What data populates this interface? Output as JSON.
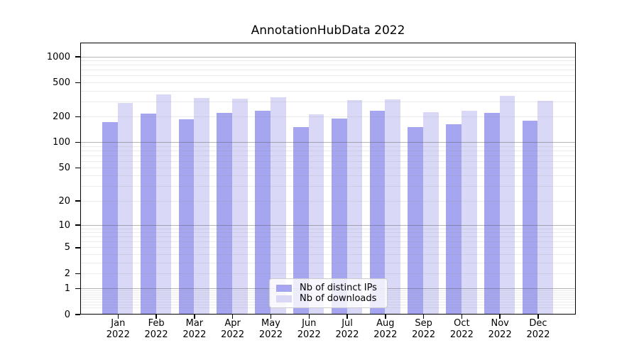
{
  "chart_data": {
    "type": "bar",
    "title": "AnnotationHubData 2022",
    "year_label": "2022",
    "categories": [
      "Jan",
      "Feb",
      "Mar",
      "Apr",
      "May",
      "Jun",
      "Jul",
      "Aug",
      "Sep",
      "Oct",
      "Nov",
      "Dec"
    ],
    "series": [
      {
        "name": "Nb of distinct IPs",
        "color": "#a5a5f0",
        "values": [
          173,
          221,
          190,
          226,
          239,
          153,
          193,
          235,
          153,
          166,
          226,
          180
        ]
      },
      {
        "name": "Nb of downloads",
        "color": "#d9d9f7",
        "values": [
          290,
          369,
          336,
          327,
          344,
          215,
          317,
          323,
          227,
          239,
          357,
          308
        ]
      }
    ],
    "yaxis": {
      "scale": "log10(1+y)",
      "ticks": [
        0,
        1,
        2,
        5,
        10,
        20,
        50,
        100,
        200,
        500,
        1000
      ],
      "major_gridlines": [
        1,
        10,
        100,
        1000
      ],
      "ylim": [
        0,
        1465
      ],
      "grid": true
    },
    "legend": {
      "position": "lower center"
    }
  },
  "colors": {
    "background": "#ffffff",
    "axis": "#000000",
    "bar_distinct_ips": "#a5a5f0",
    "bar_downloads": "#d9d9f7"
  }
}
